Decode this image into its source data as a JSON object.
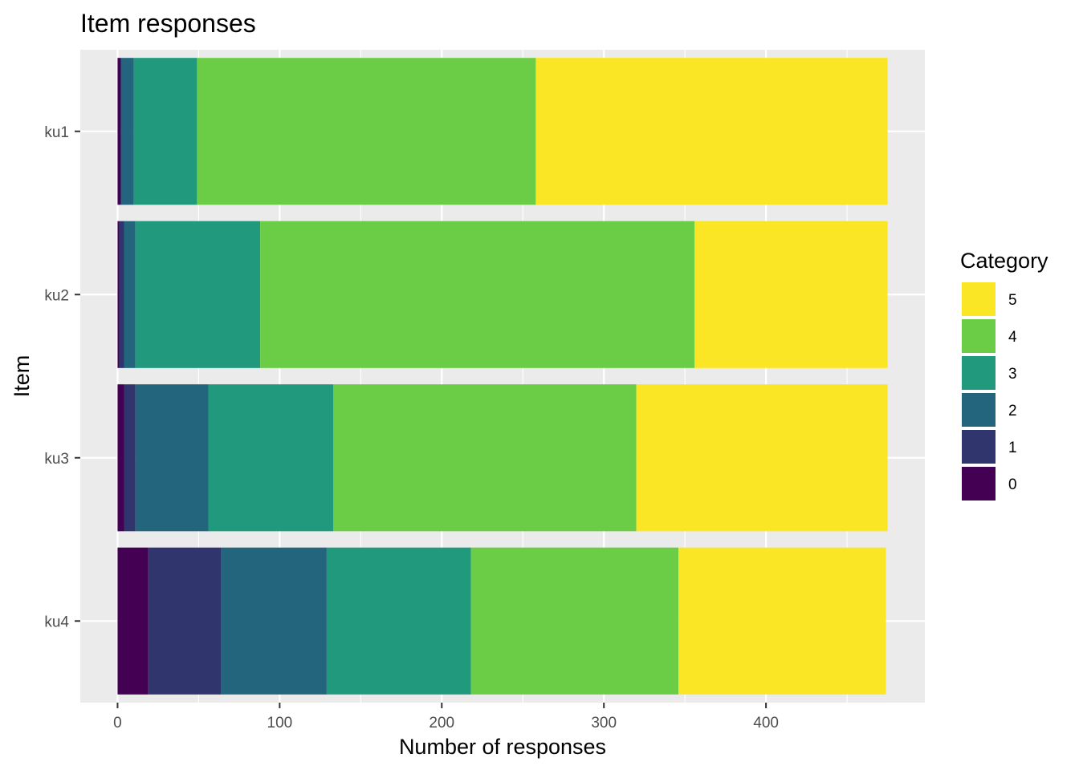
{
  "chart_data": {
    "type": "bar",
    "orientation": "horizontal",
    "stacked": true,
    "title": "Item responses",
    "xlabel": "Number of responses",
    "ylabel": "Item",
    "xlim": [
      -23,
      498
    ],
    "x_ticks": [
      0,
      100,
      200,
      300,
      400
    ],
    "x_tick_labels": [
      "0",
      "100",
      "200",
      "300",
      "400"
    ],
    "categories": [
      "ku1",
      "ku2",
      "ku3",
      "ku4"
    ],
    "legend": {
      "title": "Category",
      "position": "right"
    },
    "series": [
      {
        "name": "0",
        "color": "#440154",
        "values": [
          2,
          1,
          4,
          19
        ]
      },
      {
        "name": "1",
        "color": "#31356E",
        "values": [
          0,
          3,
          7,
          45
        ]
      },
      {
        "name": "2",
        "color": "#23657D",
        "values": [
          8,
          7,
          45,
          65
        ]
      },
      {
        "name": "3",
        "color": "#21997C",
        "values": [
          39,
          77,
          77,
          89
        ]
      },
      {
        "name": "4",
        "color": "#6BCD45",
        "values": [
          209,
          268,
          187,
          128
        ]
      },
      {
        "name": "5",
        "color": "#FBE625",
        "values": [
          217,
          119,
          155,
          128
        ]
      }
    ],
    "grid": true
  }
}
